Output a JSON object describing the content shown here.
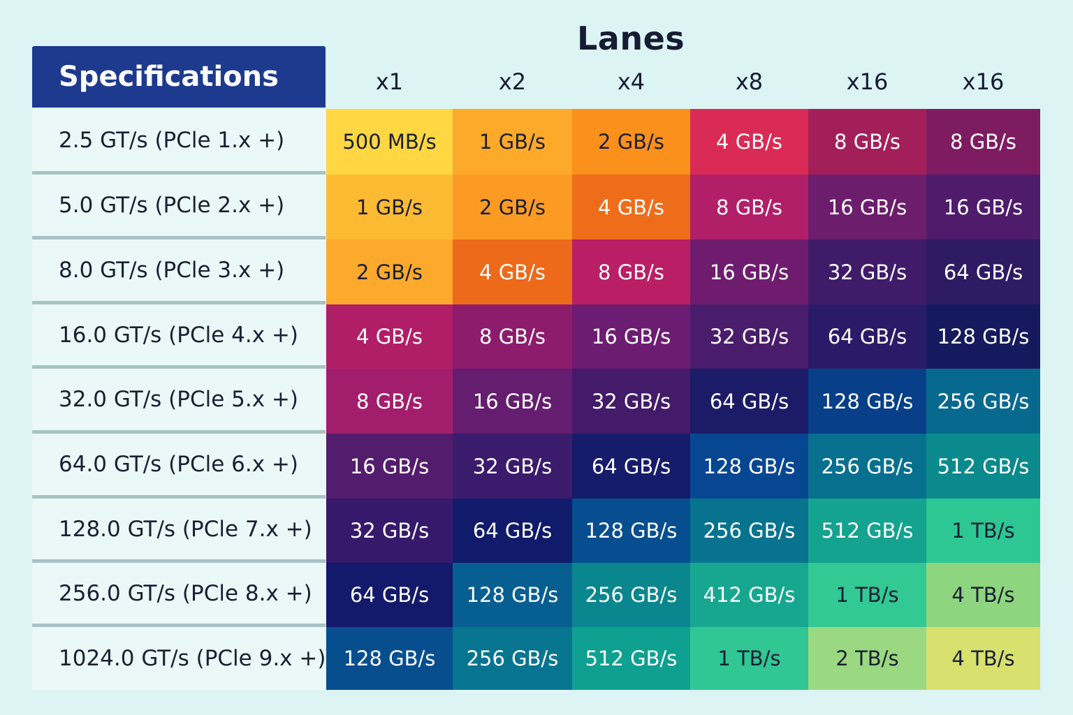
{
  "chart_data": {
    "type": "table",
    "title": "Lanes",
    "row_header": "Specifications",
    "columns": [
      "x1",
      "x2",
      "x4",
      "x8",
      "x16",
      "x16"
    ],
    "rows": [
      {
        "label": "2.5 GT/s (PCle 1.x +)",
        "values": [
          "500 MB/s",
          "1 GB/s",
          "2 GB/s",
          "4 GB/s",
          "8 GB/s",
          "8 GB/s"
        ],
        "colors": [
          "#fed743",
          "#fdaa2b",
          "#fb901d",
          "#d92b55",
          "#a31f5a",
          "#7e1c61"
        ]
      },
      {
        "label": "5.0 GT/s (PCle 2.x +)",
        "values": [
          "1 GB/s",
          "2 GB/s",
          "4 GB/s",
          "8 GB/s",
          "16 GB/s",
          "16 GB/s"
        ],
        "colors": [
          "#fdbb33",
          "#fc9b23",
          "#ee6d1a",
          "#b11f69",
          "#6c1d6c",
          "#4f1c6b"
        ]
      },
      {
        "label": "8.0 GT/s (PCle 3.x +)",
        "values": [
          "2 GB/s",
          "4 GB/s",
          "8 GB/s",
          "16 GB/s",
          "32 GB/s",
          "64 GB/s"
        ],
        "colors": [
          "#fdaa2c",
          "#ed6a1b",
          "#ba1e65",
          "#6f1c6e",
          "#3f1b6a",
          "#2e1b64"
        ]
      },
      {
        "label": "16.0 GT/s (PCle 4.x +)",
        "values": [
          "4 GB/s",
          "8 GB/s",
          "16 GB/s",
          "32 GB/s",
          "64 GB/s",
          "128 GB/s"
        ],
        "colors": [
          "#b11e68",
          "#8d1c6c",
          "#6c1d72",
          "#4a1c6c",
          "#2a1b68",
          "#151a5e"
        ]
      },
      {
        "label": "32.0 GT/s (PCle 5.x +)",
        "values": [
          "8 GB/s",
          "16 GB/s",
          "32 GB/s",
          "64 GB/s",
          "128 GB/s",
          "256 GB/s"
        ],
        "colors": [
          "#a21e6c",
          "#651d6f",
          "#431b69",
          "#1c1b68",
          "#073f88",
          "#08698f"
        ]
      },
      {
        "label": "64.0 GT/s (PCle 6.x +)",
        "values": [
          "16 GB/s",
          "32 GB/s",
          "64 GB/s",
          "128 GB/s",
          "256 GB/s",
          "512 GB/s"
        ],
        "colors": [
          "#541c6d",
          "#3b1b6c",
          "#161b6a",
          "#074791",
          "#08708f",
          "#0a8a8c"
        ]
      },
      {
        "label": "128.0 GT/s (PCle 7.x +)",
        "values": [
          "32 GB/s",
          "64 GB/s",
          "128 GB/s",
          "256 GB/s",
          "512 GB/s",
          "1 TB/s"
        ],
        "colors": [
          "#36196b",
          "#111b6b",
          "#064e8f",
          "#08738f",
          "#13a38f",
          "#2dc793"
        ]
      },
      {
        "label": "256.0 GT/s (PCle 8.x +)",
        "values": [
          "64 GB/s",
          "128 GB/s",
          "256 GB/s",
          "412 GB/s",
          "1 TB/s",
          "4 TB/s"
        ],
        "colors": [
          "#13196b",
          "#075f91",
          "#0a878e",
          "#17a790",
          "#32c994",
          "#8dd57f"
        ]
      },
      {
        "label": "1024.0 GT/s (PCle 9.x +)",
        "values": [
          "128 GB/s",
          "256 GB/s",
          "512 GB/s",
          "1 TB/s",
          "2 TB/s",
          "4 TB/s"
        ],
        "colors": [
          "#074e8f",
          "#087590",
          "#0ea090",
          "#30c794",
          "#9bd882",
          "#d8e06e"
        ]
      }
    ]
  }
}
